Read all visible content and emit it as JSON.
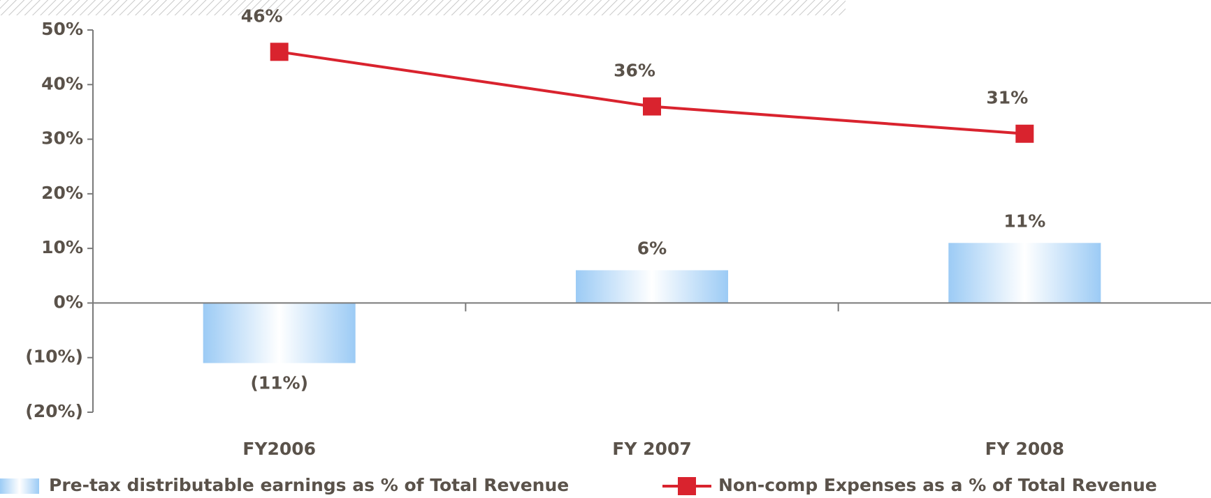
{
  "chart_data": {
    "type": "combo",
    "categories": [
      "FY2006",
      "FY 2007",
      "FY 2008"
    ],
    "series": [
      {
        "name": "Pre-tax distributable earnings as % of Total Revenue",
        "type": "bar",
        "color": "#9ccbf5",
        "values": [
          -11,
          6,
          11
        ],
        "value_labels": [
          "(11%)",
          "6%",
          "11%"
        ]
      },
      {
        "name": "Non-comp Expenses as a % of Total Revenue",
        "type": "line",
        "color": "#d9232e",
        "values": [
          46,
          36,
          31
        ],
        "value_labels": [
          "46%",
          "36%",
          "31%"
        ]
      }
    ],
    "ylim": [
      -20,
      50
    ],
    "yticks": [
      {
        "value": -20,
        "label": "(20%)"
      },
      {
        "value": -10,
        "label": "(10%)"
      },
      {
        "value": 0,
        "label": "0%"
      },
      {
        "value": 10,
        "label": "10%"
      },
      {
        "value": 20,
        "label": "20%"
      },
      {
        "value": 30,
        "label": "30%"
      },
      {
        "value": 40,
        "label": "40%"
      },
      {
        "value": 50,
        "label": "50%"
      }
    ],
    "grid": false,
    "legend": "bottom"
  }
}
